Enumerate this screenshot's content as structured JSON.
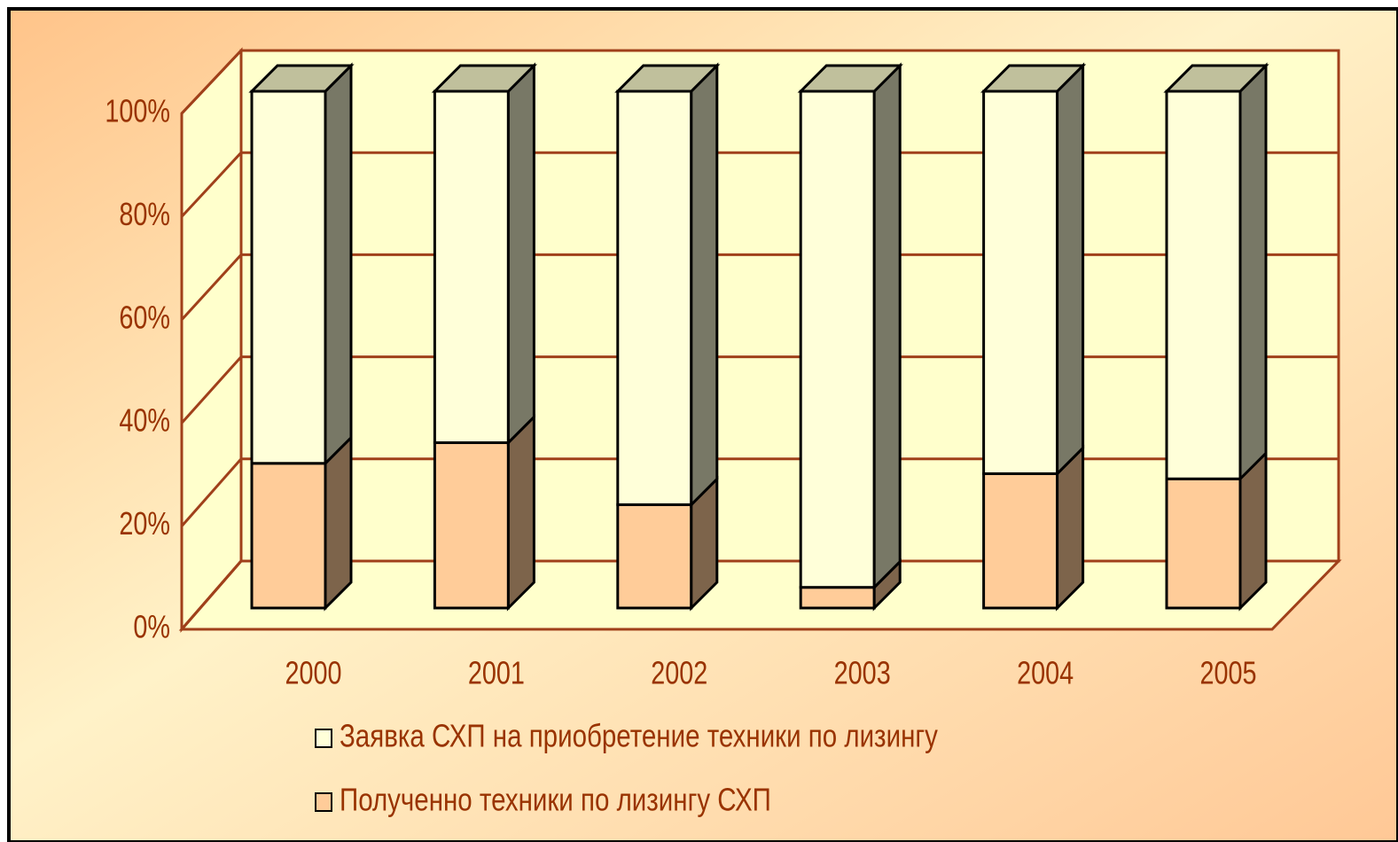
{
  "chart_data": {
    "type": "stacked_bar_3d",
    "categories": [
      "2000",
      "2001",
      "2002",
      "2003",
      "2004",
      "2005"
    ],
    "series": [
      {
        "name": "Заявка СХП на приобретение техники по лизингу",
        "color": "#FFFFD9",
        "values": [
          72,
          68,
          80,
          96,
          74,
          75
        ]
      },
      {
        "name": "Полученно техники по лизингу СХП",
        "color": "#FFCC99",
        "values": [
          28,
          32,
          20,
          4,
          26,
          25
        ]
      }
    ],
    "ylim": [
      0,
      100
    ],
    "yticks": [
      {
        "value": 0,
        "label": "0%"
      },
      {
        "value": 20,
        "label": "20%"
      },
      {
        "value": 40,
        "label": "40%"
      },
      {
        "value": 60,
        "label": "60%"
      },
      {
        "value": 80,
        "label": "80%"
      },
      {
        "value": 100,
        "label": "100%"
      }
    ],
    "grid": true
  }
}
